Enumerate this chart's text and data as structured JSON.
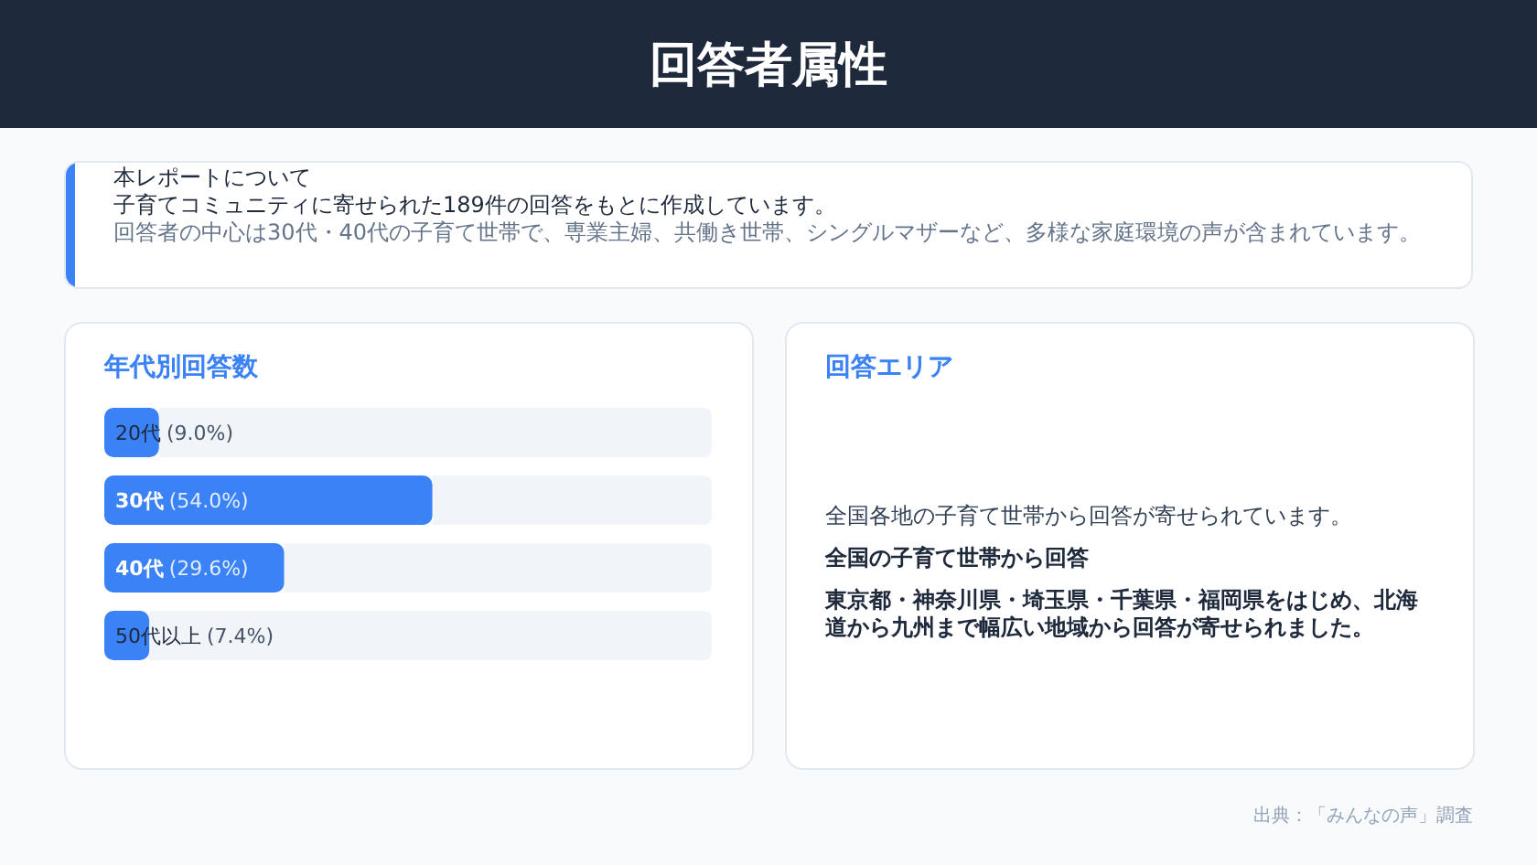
{
  "chart_data": [
    {
      "type": "other",
      "title": "回答者属性",
      "annotations": [
        "本レポートについて",
        "子育てコミュニティに寄せられた189件の回答をもとに作成しています。",
        "回答者の中心は30代・40代の子育て世帯で、専業主婦、共働き世帯、シングルマザーなど、多様な家庭環境の声が含まれています。",
        "出典：「みんなの声」調査"
      ]
    },
    {
      "type": "bar",
      "orientation": "horizontal",
      "title": "年代別回答数",
      "categories": [
        "20代",
        "30代",
        "40代",
        "50代以上"
      ],
      "values": [
        9.0,
        54.0,
        29.6,
        7.4
      ],
      "value_labels": [
        "(9.0%)",
        "(54.0%)",
        "(29.6%)",
        "(7.4%)"
      ],
      "color": "#3b82f6",
      "xlim": [
        0,
        100
      ]
    },
    {
      "type": "other",
      "title": "回答エリア",
      "annotations": [
        "全国各地の子育て世帯から回答が寄せられています。",
        "全国の子育て世帯から回答",
        "東京都・神奈川県・埼玉県・千葉県・福岡県をはじめ、北海道から九州まで幅広い地域から回答が寄せられました。"
      ]
    }
  ]
}
